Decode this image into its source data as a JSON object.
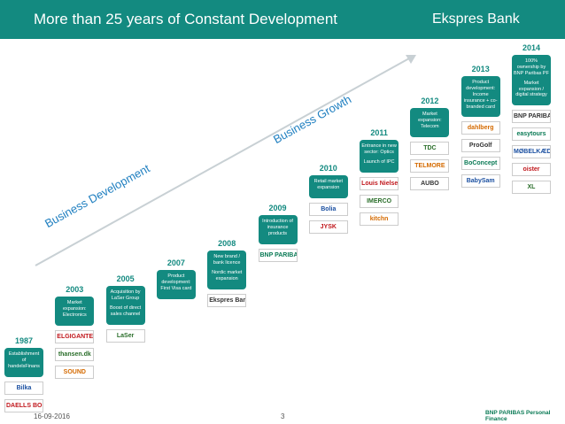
{
  "header": {
    "title": "More than 25 years of Constant Development",
    "brand": "Ekspres Bank"
  },
  "axis_labels": {
    "development": "Business Development",
    "growth": "Business Growth"
  },
  "steps": [
    {
      "year": "1987",
      "texts": [
        "Establishment of handelsFinans"
      ],
      "logos": [
        "Bilka",
        "DAELLS BOLIGHUS"
      ]
    },
    {
      "year": "2003",
      "texts": [
        "Market expansion: Electronics"
      ],
      "logos": [
        "ELGIGANTEN",
        "thansen.dk",
        "SOUND"
      ]
    },
    {
      "year": "2005",
      "texts": [
        "Acquisition by LaSer Group",
        "Boost of direct sales channel"
      ],
      "logos": [
        "LaSer"
      ]
    },
    {
      "year": "2007",
      "texts": [
        "Product development: First Visa card"
      ],
      "logos": []
    },
    {
      "year": "2008",
      "texts": [
        "New brand / bank licence",
        "Nordic market expansion"
      ],
      "logos": [
        "Ekspres Bank"
      ]
    },
    {
      "year": "2009",
      "texts": [
        "Introduction of insurance products"
      ],
      "logos": [
        "BNP PARIBAS CARDIF"
      ]
    },
    {
      "year": "2010",
      "texts": [
        "Retail market expansion"
      ],
      "logos": [
        "Bolia",
        "JYSK"
      ]
    },
    {
      "year": "2011",
      "texts": [
        "Entrance in new sector: Optics",
        "Launch of IPC"
      ],
      "logos": [
        "Louis Nielsen",
        "IMERCO",
        "kitchn"
      ]
    },
    {
      "year": "2012",
      "texts": [
        "Market expansion: Telecom"
      ],
      "logos": [
        "TDC",
        "TELMORE",
        "AUBO"
      ]
    },
    {
      "year": "2013",
      "texts": [
        "Product development: Income insurance + co-branded card"
      ],
      "logos": [
        "dahlberg",
        "ProGolf",
        "BoConcept",
        "BabySam"
      ]
    },
    {
      "year": "2014",
      "texts": [
        "100% ownership by BNP Paribas PF",
        "Market expansion / digital strategy"
      ],
      "logos": [
        "BNP PARIBAS",
        "easytours",
        "MØBELKÆDEN",
        "oister",
        "XL"
      ]
    }
  ],
  "footer": {
    "date": "16-09-2016",
    "page": "3",
    "partner": "BNP PARIBAS Personal Finance"
  }
}
